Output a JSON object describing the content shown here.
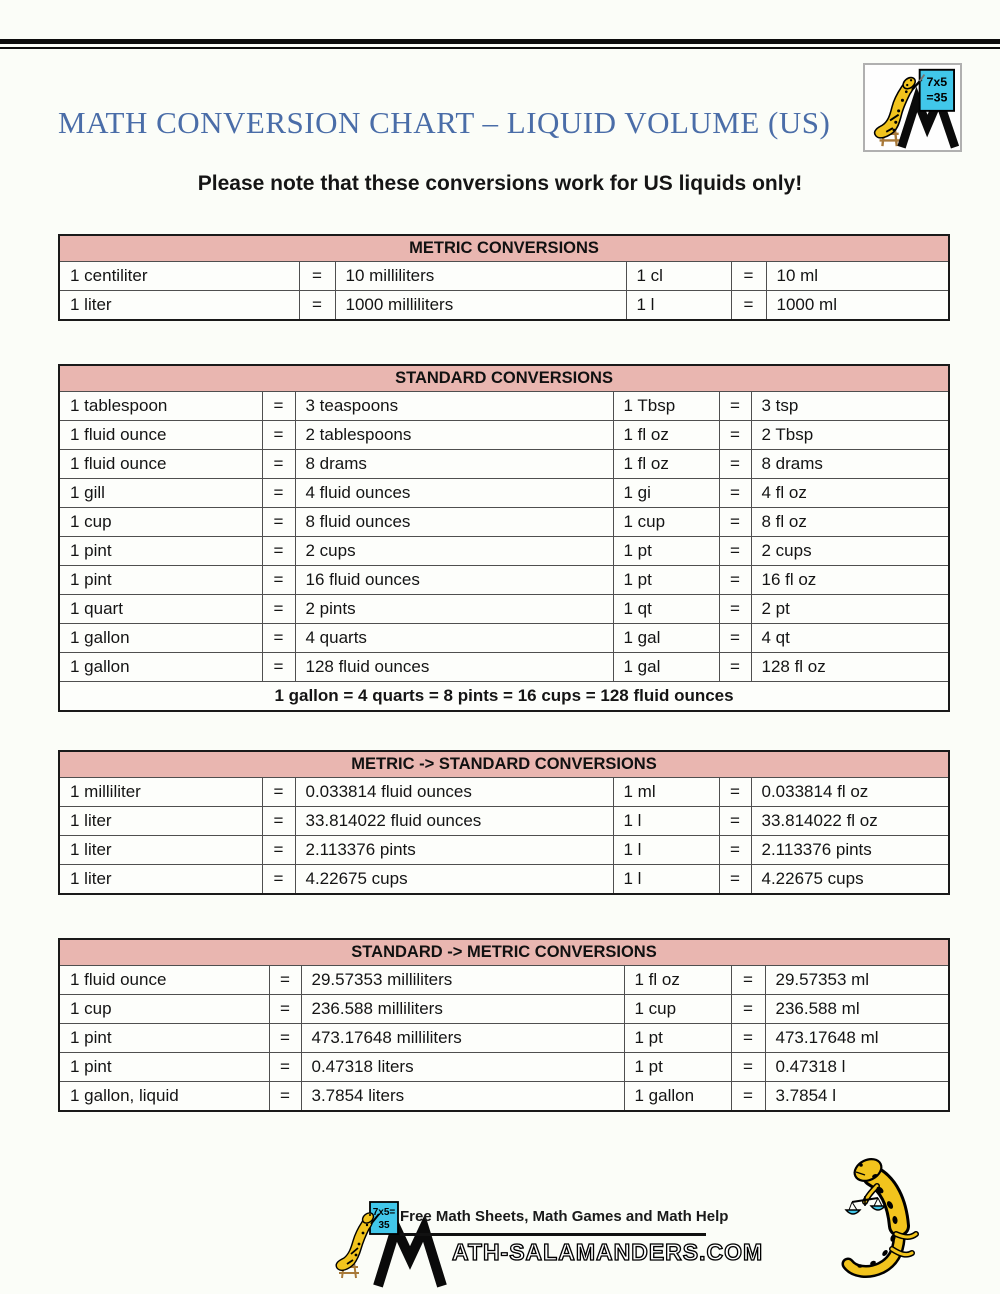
{
  "page": {
    "title": "MATH CONVERSION CHART – LIQUID VOLUME (US)",
    "note": "Please note that these conversions work for US liquids only!"
  },
  "logo_box": {
    "board_line1": "7x5",
    "board_line2": "=35"
  },
  "tables": [
    {
      "header": "METRIC CONVERSIONS",
      "rows": [
        [
          "1 centiliter",
          "=",
          "10 milliliters",
          "1 cl",
          "=",
          "10 ml"
        ],
        [
          "1 liter",
          "=",
          "1000 milliliters",
          "1 l",
          "=",
          "1000 ml"
        ]
      ]
    },
    {
      "header": "STANDARD CONVERSIONS",
      "rows": [
        [
          "1 tablespoon",
          "=",
          "3 teaspoons",
          "1 Tbsp",
          "=",
          "3 tsp"
        ],
        [
          "1 fluid ounce",
          "=",
          "2 tablespoons",
          "1 fl oz",
          "=",
          "2 Tbsp"
        ],
        [
          "1 fluid ounce",
          "=",
          "8 drams",
          "1 fl oz",
          "=",
          "8 drams"
        ],
        [
          "1 gill",
          "=",
          "4 fluid ounces",
          "1 gi",
          "=",
          "4 fl oz"
        ],
        [
          "1 cup",
          "=",
          "8 fluid ounces",
          "1 cup",
          "=",
          "8 fl oz"
        ],
        [
          "1 pint",
          "=",
          "2 cups",
          "1 pt",
          "=",
          "2 cups"
        ],
        [
          "1 pint",
          "=",
          "16 fluid ounces",
          "1 pt",
          "=",
          "16 fl oz"
        ],
        [
          "1 quart",
          "=",
          "2 pints",
          "1 qt",
          "=",
          "2 pt"
        ],
        [
          "1 gallon",
          "=",
          "4 quarts",
          "1 gal",
          "=",
          "4 qt"
        ],
        [
          "1 gallon",
          "=",
          "128 fluid ounces",
          "1 gal",
          "=",
          "128 fl oz"
        ]
      ],
      "summary": "1 gallon = 4 quarts = 8 pints = 16 cups = 128 fluid ounces"
    },
    {
      "header": "METRIC -> STANDARD CONVERSIONS",
      "rows": [
        [
          "1 milliliter",
          "=",
          "0.033814 fluid ounces",
          "1 ml",
          "=",
          "0.033814 fl oz"
        ],
        [
          "1 liter",
          "=",
          "33.814022 fluid ounces",
          "1 l",
          "=",
          "33.814022 fl oz"
        ],
        [
          "1 liter",
          "=",
          "2.113376 pints",
          "1 l",
          "=",
          "2.113376 pints"
        ],
        [
          "1 liter",
          "=",
          "4.22675 cups",
          "1 l",
          "=",
          "4.22675 cups"
        ]
      ]
    },
    {
      "header": "STANDARD -> METRIC CONVERSIONS",
      "rows": [
        [
          "1 fluid ounce",
          "=",
          "29.57353 milliliters",
          "1 fl oz",
          "=",
          "29.57353 ml"
        ],
        [
          "1 cup",
          "=",
          "236.588 milliliters",
          "1 cup",
          "=",
          "236.588 ml"
        ],
        [
          "1 pint",
          "=",
          "473.17648 milliliters",
          "1 pt",
          "=",
          "473.17648 ml"
        ],
        [
          "1 pint",
          "=",
          "0.47318 liters",
          "1 pt",
          "=",
          "0.47318 l"
        ],
        [
          "1 gallon, liquid",
          "=",
          "3.7854 liters",
          "1 gallon",
          "=",
          "3.7854 l"
        ]
      ]
    }
  ],
  "footer": {
    "board_line1": "7x5=",
    "board_line2": "35",
    "tagline": "Free Math Sheets, Math Games and Math Help",
    "site": "ATH-SALAMANDERS.COM"
  },
  "colors": {
    "table_header_bg": "#e9b6b0",
    "title_blue": "#4a6da8",
    "board_cyan": "#41c7ea",
    "salamander_yellow": "#f2c41d",
    "page_bg": "#fbfdf8"
  }
}
